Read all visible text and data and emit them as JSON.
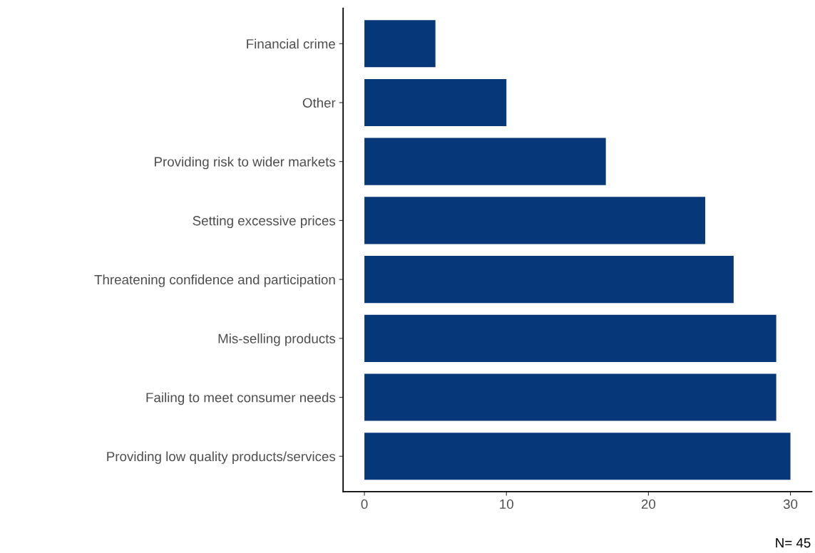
{
  "chart_data": {
    "type": "bar",
    "orientation": "horizontal",
    "categories": [
      "Financial crime",
      "Other",
      "Providing risk to wider markets",
      "Setting excessive prices",
      "Threatening confidence and participation",
      "Mis-selling products",
      "Failing to meet consumer needs",
      "Providing low quality products/services"
    ],
    "values": [
      5,
      10,
      17,
      24,
      26,
      29,
      29,
      30
    ],
    "color": "#063778",
    "xlim": [
      -1.5,
      31.5
    ],
    "xticks": [
      0,
      10,
      20,
      30
    ],
    "grid": false,
    "legend": false,
    "annotations": [
      "N= 45"
    ]
  }
}
